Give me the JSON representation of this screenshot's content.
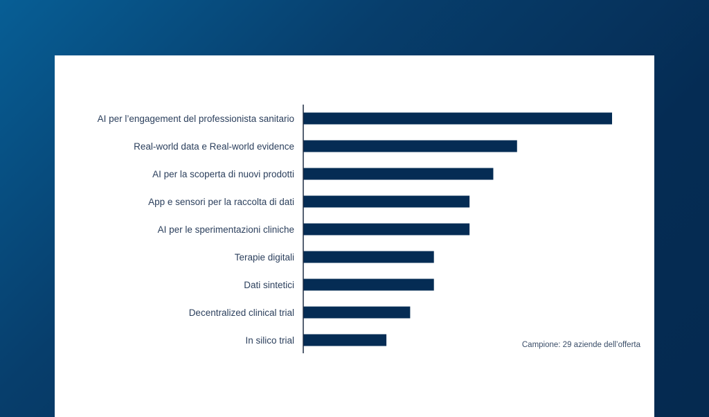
{
  "colors": {
    "bar": "#052c54",
    "axis": "#1f2d44",
    "label": "#2b3f5c"
  },
  "chart_data": {
    "type": "bar",
    "orientation": "horizontal",
    "title": "",
    "xlabel": "",
    "ylabel": "",
    "grid": false,
    "categories": [
      "AI per l’engagement del professionista sanitario",
      "Real-world data e Real-world evidence",
      "AI per la scoperta di nuovi prodotti",
      "App e sensori per la raccolta di dati",
      "AI per le sperimentazioni cliniche",
      "Terapie digitali",
      "Dati sintetici",
      "Decentralized clinical trial",
      "In silico trial"
    ],
    "values": [
      13,
      9,
      8,
      7,
      7,
      5.5,
      5.5,
      4.5,
      3.5
    ],
    "xlim": [
      0,
      13
    ],
    "note": "Campione: 29 aziende dell’offerta"
  }
}
